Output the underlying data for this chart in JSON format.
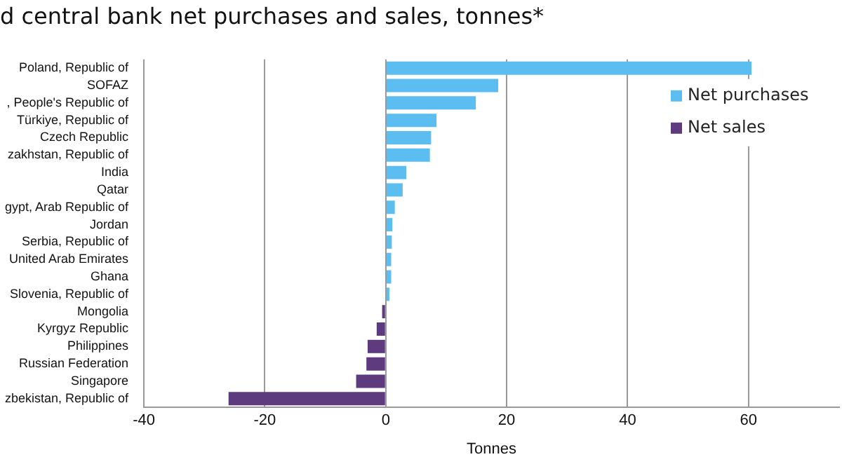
{
  "chart_data": {
    "type": "bar",
    "orientation": "horizontal",
    "stacked": true,
    "title": "d central bank net purchases and sales, tonnes*",
    "xlabel": "Tonnes",
    "categories": [
      "Poland, Republic of",
      "SOFAZ",
      ", People's Republic of",
      "Türkiye, Republic of",
      "Czech Republic",
      "zakhstan, Republic of",
      "India",
      "Qatar",
      "gypt, Arab Republic of",
      "Jordan",
      "Serbia, Republic of",
      "United Arab Emirates",
      "Ghana",
      "Slovenia, Republic of",
      "Mongolia",
      "Kyrgyz Republic",
      "Philippines",
      "Russian Federation",
      "Singapore",
      "zbekistan, Republic of"
    ],
    "series": [
      {
        "name": "Net purchases",
        "color": "#5bbdf0",
        "values": [
          60.5,
          18.6,
          14.9,
          8.4,
          7.5,
          7.3,
          3.4,
          2.8,
          1.5,
          1.1,
          1.0,
          0.9,
          0.9,
          0.6,
          null,
          null,
          null,
          null,
          null,
          null
        ]
      },
      {
        "name": "Net sales",
        "color": "#5e3a7f",
        "values": [
          null,
          null,
          null,
          null,
          null,
          null,
          null,
          null,
          null,
          null,
          null,
          null,
          null,
          null,
          -0.6,
          -1.5,
          -3.0,
          -3.2,
          -4.9,
          -26.0
        ]
      }
    ],
    "xlim": [
      -40,
      75
    ],
    "xticks": [
      -40,
      -20,
      0,
      20,
      40,
      60
    ],
    "grid": "x",
    "legend": "top right"
  }
}
